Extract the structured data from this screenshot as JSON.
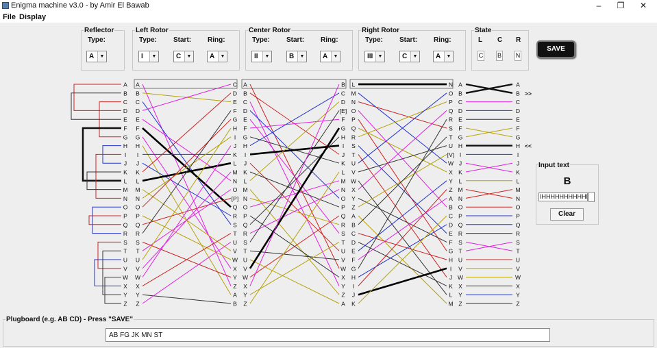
{
  "window": {
    "title": "Enigma machine v3.0 - by Amir El Bawab",
    "min_glyph": "–",
    "max_glyph": "❐",
    "close_glyph": "✕"
  },
  "menu": {
    "file": "File",
    "display": "Display"
  },
  "reflector": {
    "title": "Reflector",
    "type_label": "Type:",
    "type_value": "A"
  },
  "left_rotor": {
    "title": "Left Rotor",
    "type_label": "Type:",
    "type_value": "I",
    "start_label": "Start:",
    "start_value": "C",
    "ring_label": "Ring:",
    "ring_value": "A"
  },
  "center_rotor": {
    "title": "Center Rotor",
    "type_label": "Type:",
    "type_value": "II",
    "start_label": "Start:",
    "start_value": "B",
    "ring_label": "Ring:",
    "ring_value": "A"
  },
  "right_rotor": {
    "title": "Right Rotor",
    "type_label": "Type:",
    "type_value": "III",
    "start_label": "Start:",
    "start_value": "C",
    "ring_label": "Ring:",
    "ring_value": "A"
  },
  "state": {
    "title": "State",
    "l_label": "L",
    "c_label": "C",
    "r_label": "R",
    "l_value": "C",
    "c_value": "B",
    "r_value": "N"
  },
  "save_button": "SAVE",
  "wiring": {
    "columns": [
      [
        "A",
        "B",
        "C",
        "D",
        "E",
        "F",
        "G",
        "H",
        "I",
        "J",
        "K",
        "L",
        "M",
        "N",
        "O",
        "P",
        "Q",
        "R",
        "S",
        "T",
        "U",
        "V",
        "W",
        "X",
        "Y",
        "Z"
      ],
      [
        "A",
        "B",
        "C",
        "D",
        "E",
        "F",
        "G",
        "H",
        "I",
        "J",
        "K",
        "L",
        "M",
        "N",
        "O",
        "P",
        "Q",
        "R",
        "S",
        "T",
        "U",
        "V",
        "W",
        "X",
        "Y",
        "Z"
      ],
      [
        "C",
        "D",
        "E",
        "F",
        "G",
        "H",
        "I",
        "J",
        "K",
        "L",
        "M",
        "N",
        "O",
        "[P]",
        "Q",
        "R",
        "S",
        "T",
        "U",
        "V",
        "W",
        "X",
        "Y",
        "Z",
        "A",
        "B"
      ],
      [
        "A",
        "B",
        "C",
        "D",
        "E",
        "F",
        "G",
        "H",
        "I",
        "J",
        "K",
        "L",
        "M",
        "N",
        "O",
        "P",
        "Q",
        "R",
        "S",
        "T",
        "U",
        "V",
        "W",
        "X",
        "Y",
        "Z"
      ],
      [
        "B",
        "C",
        "D",
        "[E]",
        "F",
        "G",
        "H",
        "I",
        "J",
        "K",
        "L",
        "M",
        "N",
        "O",
        "P",
        "Q",
        "R",
        "S",
        "T",
        "U",
        "V",
        "W",
        "X",
        "Y",
        "Z",
        "A"
      ],
      [
        "L",
        "M",
        "N",
        "O",
        "P",
        "Q",
        "R",
        "S",
        "T",
        "U",
        "V",
        "W",
        "X",
        "Y",
        "Z",
        "A",
        "B",
        "C",
        "D",
        "E",
        "F",
        "G",
        "H",
        "I",
        "J",
        "K"
      ],
      [
        "N",
        "O",
        "P",
        "Q",
        "R",
        "S",
        "T",
        "U",
        "[V]",
        "W",
        "X",
        "Y",
        "Z",
        "A",
        "B",
        "C",
        "D",
        "E",
        "F",
        "G",
        "H",
        "I",
        "J",
        "K",
        "L",
        "M"
      ],
      [
        "A",
        "B",
        "C",
        "D",
        "E",
        "F",
        "G",
        "H",
        "I",
        "J",
        "K",
        "L",
        "M",
        "N",
        "O",
        "P",
        "Q",
        "R",
        "S",
        "T",
        "U",
        "V",
        "W",
        "X",
        "Y",
        "Z"
      ],
      [
        "A",
        "B",
        "C",
        "D",
        "E",
        "F",
        "G",
        "H",
        "I",
        "J",
        "K",
        "L",
        "M",
        "N",
        "O",
        "P",
        "Q",
        "R",
        "S",
        "T",
        "U",
        "V",
        "W",
        "X",
        "Y",
        "Z"
      ]
    ],
    "input_marker": ">>",
    "output_marker": "<<"
  },
  "input_panel": {
    "title": "Input text",
    "current_letter": "B",
    "field_value": "IHHHHHHHHHHH",
    "clear_button": "Clear"
  },
  "plugboard": {
    "title": "Plugboard (e.g. AB CD) - Press \"SAVE\"",
    "value": "AB FG JK MN ST"
  }
}
